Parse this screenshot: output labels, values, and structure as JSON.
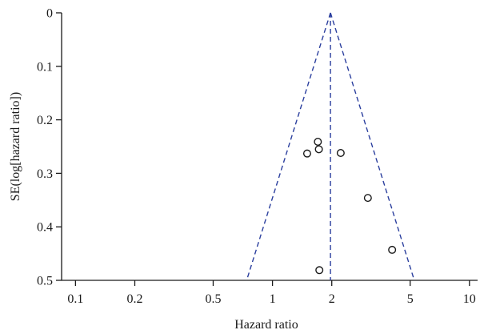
{
  "chart_data": {
    "type": "scatter",
    "title": "",
    "xlabel": "Hazard ratio",
    "ylabel": "SE(log[hazard ratio])",
    "x_scale": "log",
    "xlim": [
      0.085,
      11
    ],
    "ylim": [
      0,
      0.5
    ],
    "y_reversed": true,
    "x_ticks": [
      0.1,
      0.2,
      0.5,
      1,
      2,
      5,
      10
    ],
    "x_tick_labels": [
      "0.1",
      "0.2",
      "0.5",
      "1",
      "2",
      "5",
      "10"
    ],
    "y_ticks": [
      0,
      0.1,
      0.2,
      0.3,
      0.4,
      0.5
    ],
    "y_tick_labels": [
      "0",
      "0.1",
      "0.2",
      "0.3",
      "0.4",
      "0.5"
    ],
    "grid": false,
    "pooled_estimate": 1.97,
    "funnel_se_max": 0.5,
    "points": [
      {
        "x": 1.7,
        "y": 0.241
      },
      {
        "x": 1.5,
        "y": 0.263
      },
      {
        "x": 1.72,
        "y": 0.255
      },
      {
        "x": 2.22,
        "y": 0.262
      },
      {
        "x": 3.05,
        "y": 0.346
      },
      {
        "x": 4.05,
        "y": 0.443
      },
      {
        "x": 1.73,
        "y": 0.481
      }
    ],
    "colors": {
      "axis": "#1a1a1a",
      "funnel": "#2b3f9e",
      "points": "#1a1a1a"
    }
  }
}
